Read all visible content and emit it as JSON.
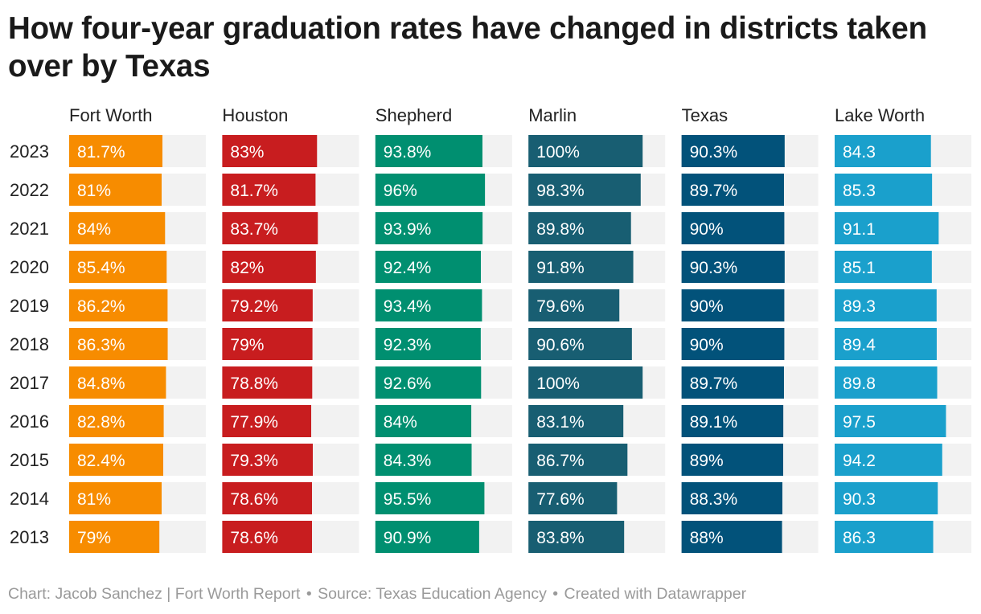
{
  "chart_data": {
    "type": "bar",
    "title": "How four-year graduation rates have changed in districts taken over by Texas",
    "categories": [
      "2023",
      "2022",
      "2021",
      "2020",
      "2019",
      "2018",
      "2017",
      "2016",
      "2015",
      "2014",
      "2013"
    ],
    "xlim": [
      0,
      100
    ],
    "series": [
      {
        "name": "Fort Worth",
        "color": "#f78c00",
        "values": [
          81.7,
          81,
          84,
          85.4,
          86.2,
          86.3,
          84.8,
          82.8,
          82.4,
          81,
          79
        ],
        "labels": [
          "81.7%",
          "81%",
          "84%",
          "85.4%",
          "86.2%",
          "86.3%",
          "84.8%",
          "82.8%",
          "82.4%",
          "81%",
          "79%"
        ]
      },
      {
        "name": "Houston",
        "color": "#c81d1f",
        "values": [
          83,
          81.7,
          83.7,
          82,
          79.2,
          79,
          78.8,
          77.9,
          79.3,
          78.6,
          78.6
        ],
        "labels": [
          "83%",
          "81.7%",
          "83.7%",
          "82%",
          "79.2%",
          "79%",
          "78.8%",
          "77.9%",
          "79.3%",
          "78.6%",
          "78.6%"
        ]
      },
      {
        "name": "Shepherd",
        "color": "#008f70",
        "values": [
          93.8,
          96,
          93.9,
          92.4,
          93.4,
          92.3,
          92.6,
          84,
          84.3,
          95.5,
          90.9
        ],
        "labels": [
          "93.8%",
          "96%",
          "93.9%",
          "92.4%",
          "93.4%",
          "92.3%",
          "92.6%",
          "84%",
          "84.3%",
          "95.5%",
          "90.9%"
        ]
      },
      {
        "name": "Marlin",
        "color": "#185e72",
        "values": [
          100,
          98.3,
          89.8,
          91.8,
          79.6,
          90.6,
          100,
          83.1,
          86.7,
          77.6,
          83.8
        ],
        "labels": [
          "100%",
          "98.3%",
          "89.8%",
          "91.8%",
          "79.6%",
          "90.6%",
          "100%",
          "83.1%",
          "86.7%",
          "77.6%",
          "83.8%"
        ]
      },
      {
        "name": "Texas",
        "color": "#02527a",
        "values": [
          90.3,
          89.7,
          90,
          90.3,
          90,
          90,
          89.7,
          89.1,
          89,
          88.3,
          88
        ],
        "labels": [
          "90.3%",
          "89.7%",
          "90%",
          "90.3%",
          "90%",
          "90%",
          "89.7%",
          "89.1%",
          "89%",
          "88.3%",
          "88%"
        ]
      },
      {
        "name": "Lake Worth",
        "color": "#1aa0cc",
        "values": [
          84.3,
          85.3,
          91.1,
          85.1,
          89.3,
          89.4,
          89.8,
          97.5,
          94.2,
          90.3,
          86.3
        ],
        "labels": [
          "84.3",
          "85.3",
          "91.1",
          "85.1",
          "89.3",
          "89.4",
          "89.8",
          "97.5",
          "94.2",
          "90.3",
          "86.3"
        ]
      }
    ],
    "track_color": "#f2f2f2"
  },
  "footer": {
    "credit": "Chart: Jacob Sanchez | Fort Worth Report",
    "source": "Source: Texas Education Agency",
    "tool": "Created with Datawrapper",
    "separator": "•"
  }
}
